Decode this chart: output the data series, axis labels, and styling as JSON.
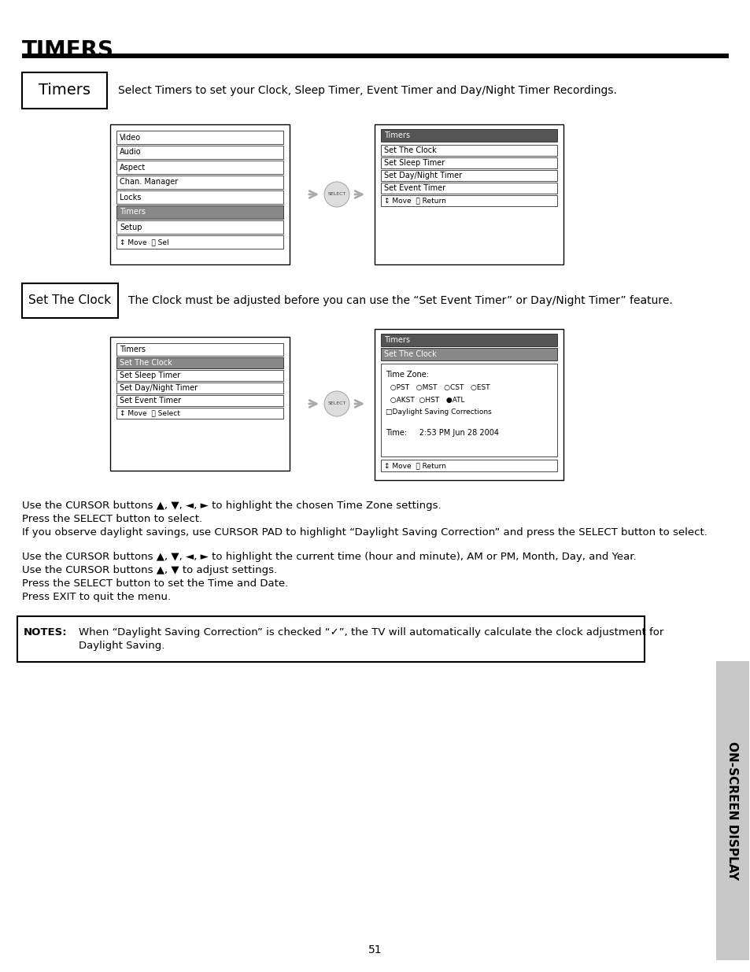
{
  "title": "TIMERS",
  "bg_color": "#ffffff",
  "page_number": "51",
  "sidebar_text": "ON-SCREEN DISPLAY",
  "timers_label": "Timers",
  "timers_desc": "Select Timers to set your Clock, Sleep Timer, Event Timer and Day/Night Timer Recordings.",
  "menu1_items": [
    "Video",
    "Audio",
    "Aspect",
    "Chan. Manager",
    "Locks",
    "Timers",
    "Setup"
  ],
  "menu1_bottom": "↕ Move  Ⓢ Sel",
  "menu1_highlight": 5,
  "menu2_title": "Timers",
  "menu2_items": [
    "Set The Clock",
    "Set Sleep Timer",
    "Set Day/Night Timer",
    "Set Event Timer"
  ],
  "menu2_bottom": "↕ Move  Ⓢ Return",
  "set_clock_label": "Set The Clock",
  "set_clock_desc": "The Clock must be adjusted before you can use the “Set Event Timer” or Day/Night Timer” feature.",
  "menu3_title": "Timers",
  "menu3_items": [
    "Set The Clock",
    "Set Sleep Timer",
    "Set Day/Night Timer",
    "Set Event Timer"
  ],
  "menu3_bottom": "↕ Move  Ⓢ Select",
  "menu3_highlight": 0,
  "menu4_title": "Timers",
  "menu4_subtitle": "Set The Clock",
  "menu4_tz_label": "Time Zone:",
  "menu4_tz_row1": "  ○PST   ○MST   ○CST   ○EST",
  "menu4_tz_row2": "  ○AKST  ○HST   ●ATL",
  "menu4_tz_row3": "□Daylight Saving Corrections",
  "menu4_time": "Time:     2:53 PM Jun 28 2004",
  "menu4_bottom": "↕ Move  Ⓢ Return",
  "para1_lines": [
    "Use the CURSOR buttons ▲, ▼, ◄, ► to highlight the chosen Time Zone settings.",
    "Press the SELECT button to select.",
    "If you observe daylight savings, use CURSOR PAD to highlight “Daylight Saving Correction” and press the SELECT button to select."
  ],
  "para2_lines": [
    "Use the CURSOR buttons ▲, ▼, ◄, ► to highlight the current time (hour and minute), AM or PM, Month, Day, and Year.",
    "Use the CURSOR buttons ▲, ▼ to adjust settings.",
    "Press the SELECT button to set the Time and Date.",
    "Press EXIT to quit the menu."
  ],
  "notes_label": "NOTES:",
  "notes_line1": "When “Daylight Saving Correction” is checked “✓”, the TV will automatically calculate the clock adjustment for",
  "notes_line2": "Daylight Saving."
}
